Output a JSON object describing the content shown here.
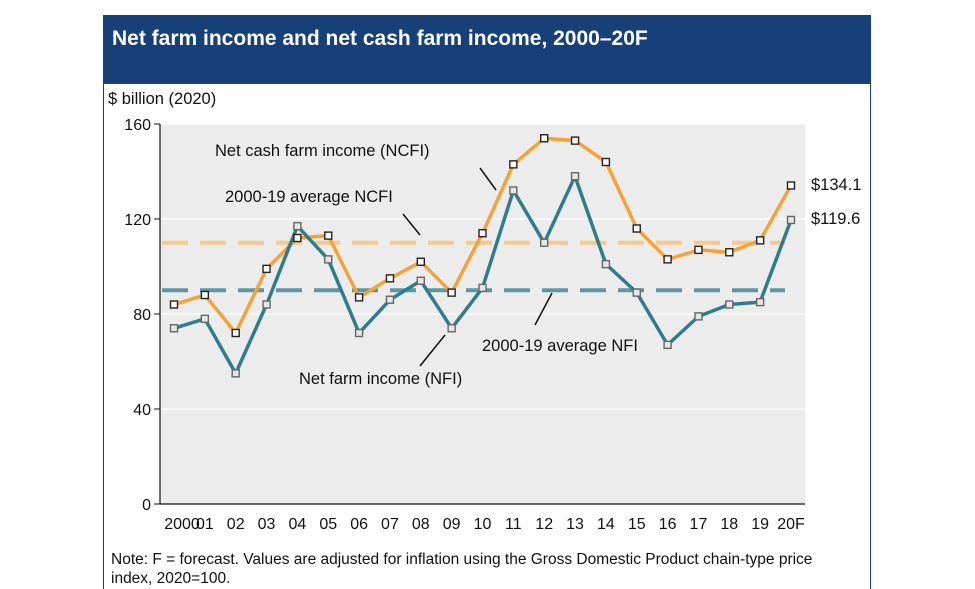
{
  "header": {
    "title": "Net farm income and net cash farm income, 2000–20F"
  },
  "note": "Note: F = forecast. Values are adjusted for inflation using the Gross Domestic Product chain-type price index, 2020=100.",
  "chart_data": {
    "type": "line",
    "title": "Net farm income and net cash farm income, 2000–20F",
    "ylabel": "$ billion (2020)",
    "xlabel": "",
    "categories": [
      "2000",
      "01",
      "02",
      "03",
      "04",
      "05",
      "06",
      "07",
      "08",
      "09",
      "10",
      "11",
      "12",
      "13",
      "14",
      "15",
      "16",
      "17",
      "18",
      "19",
      "20F"
    ],
    "ylim": [
      0,
      160
    ],
    "yticks": [
      0,
      40,
      80,
      120,
      160
    ],
    "grid": true,
    "series": [
      {
        "name": "Net cash farm income (NCFI)",
        "color": "#f5a23a",
        "values": [
          84,
          88,
          72,
          99,
          112,
          113,
          87,
          95,
          102,
          89,
          114,
          143,
          154,
          153,
          144,
          116,
          103,
          107,
          106,
          111,
          134.1
        ]
      },
      {
        "name": "Net farm income (NFI)",
        "color": "#2f7d8c",
        "values": [
          74,
          78,
          55,
          84,
          117,
          103,
          72,
          86,
          94,
          74,
          91,
          132,
          110,
          138,
          101,
          89,
          67,
          79,
          84,
          85,
          119.6
        ]
      }
    ],
    "reference_lines": [
      {
        "name": "2000-19 average NCFI",
        "value": 110,
        "color": "#f7c98d"
      },
      {
        "name": "2000-19 average NFI",
        "value": 90,
        "color": "#5e97a3"
      }
    ],
    "end_labels": [
      "$134.1",
      "$119.6"
    ]
  }
}
